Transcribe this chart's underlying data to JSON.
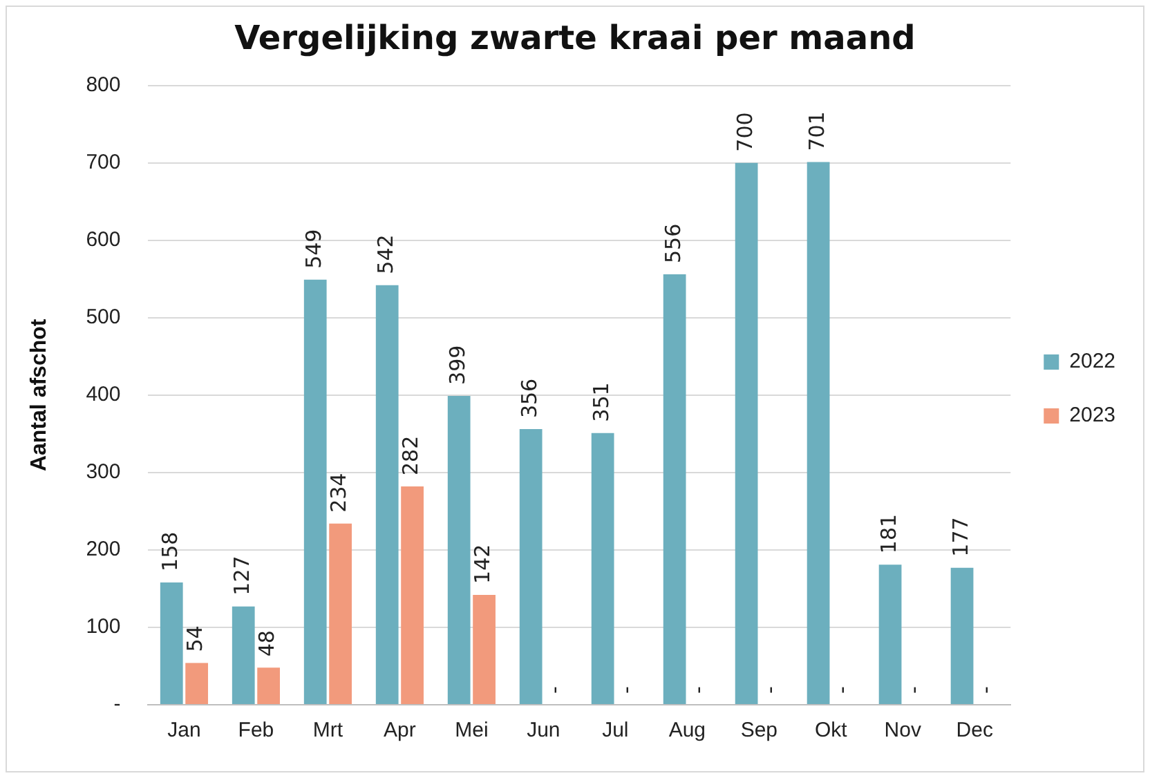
{
  "chart_data": {
    "type": "bar",
    "title": "Vergelijking zwarte kraai per maand",
    "ylabel": "Aantal afschot",
    "categories": [
      "Jan",
      "Feb",
      "Mrt",
      "Apr",
      "Mei",
      "Jun",
      "Jul",
      "Aug",
      "Sep",
      "Okt",
      "Nov",
      "Dec"
    ],
    "series": [
      {
        "name": "2022",
        "color": "#6cafbe",
        "values": [
          158,
          127,
          549,
          542,
          399,
          356,
          351,
          556,
          700,
          701,
          181,
          177
        ],
        "value_labels": [
          "158",
          "127",
          "549",
          "542",
          "399",
          "356",
          "351",
          "556",
          "700",
          "701",
          "181",
          "177"
        ]
      },
      {
        "name": "2023",
        "color": "#f29a7c",
        "values": [
          54,
          48,
          234,
          282,
          142,
          0,
          0,
          0,
          0,
          0,
          0,
          0
        ],
        "value_labels": [
          "54",
          "48",
          "234",
          "282",
          "142",
          "-",
          "-",
          "-",
          "-",
          "-",
          "-",
          "-"
        ]
      }
    ],
    "ylim": [
      0,
      800
    ],
    "yticks": [
      {
        "value": 0,
        "label": "-"
      },
      100,
      200,
      300,
      400,
      500,
      600,
      700,
      800
    ],
    "grid": "y",
    "legend": "right"
  }
}
